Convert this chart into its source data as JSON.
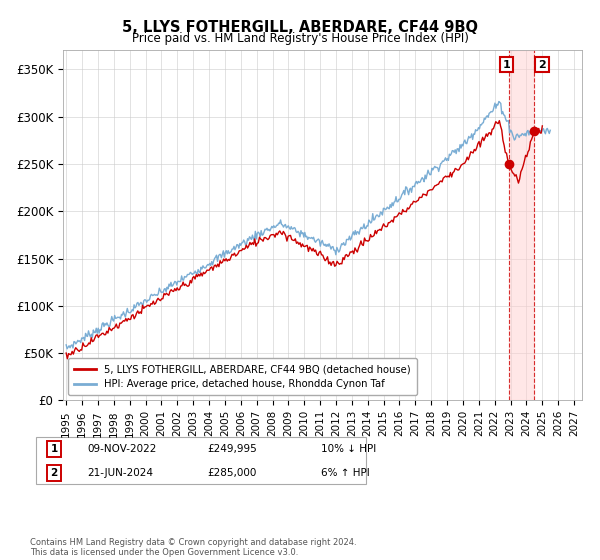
{
  "title": "5, LLYS FOTHERGILL, ABERDARE, CF44 9BQ",
  "subtitle": "Price paid vs. HM Land Registry's House Price Index (HPI)",
  "footer": "Contains HM Land Registry data © Crown copyright and database right 2024.\nThis data is licensed under the Open Government Licence v3.0.",
  "legend_line1": "5, LLYS FOTHERGILL, ABERDARE, CF44 9BQ (detached house)",
  "legend_line2": "HPI: Average price, detached house, Rhondda Cynon Taf",
  "annotation1_date": "09-NOV-2022",
  "annotation1_price": "£249,995",
  "annotation1_hpi": "10% ↓ HPI",
  "annotation2_date": "21-JUN-2024",
  "annotation2_price": "£285,000",
  "annotation2_hpi": "6% ↑ HPI",
  "red_color": "#cc0000",
  "blue_color": "#7aadd4",
  "ylabel_ticks": [
    "£0",
    "£50K",
    "£100K",
    "£150K",
    "£200K",
    "£250K",
    "£300K",
    "£350K"
  ],
  "ylabel_values": [
    0,
    50000,
    100000,
    150000,
    200000,
    250000,
    300000,
    350000
  ],
  "ylim": [
    0,
    370000
  ],
  "xlim_start": 1994.8,
  "xlim_end": 2027.5,
  "x_tick_years": [
    1995,
    1996,
    1997,
    1998,
    1999,
    2000,
    2001,
    2002,
    2003,
    2004,
    2005,
    2006,
    2007,
    2008,
    2009,
    2010,
    2011,
    2012,
    2013,
    2014,
    2015,
    2016,
    2017,
    2018,
    2019,
    2020,
    2021,
    2022,
    2023,
    2024,
    2025,
    2026,
    2027
  ]
}
